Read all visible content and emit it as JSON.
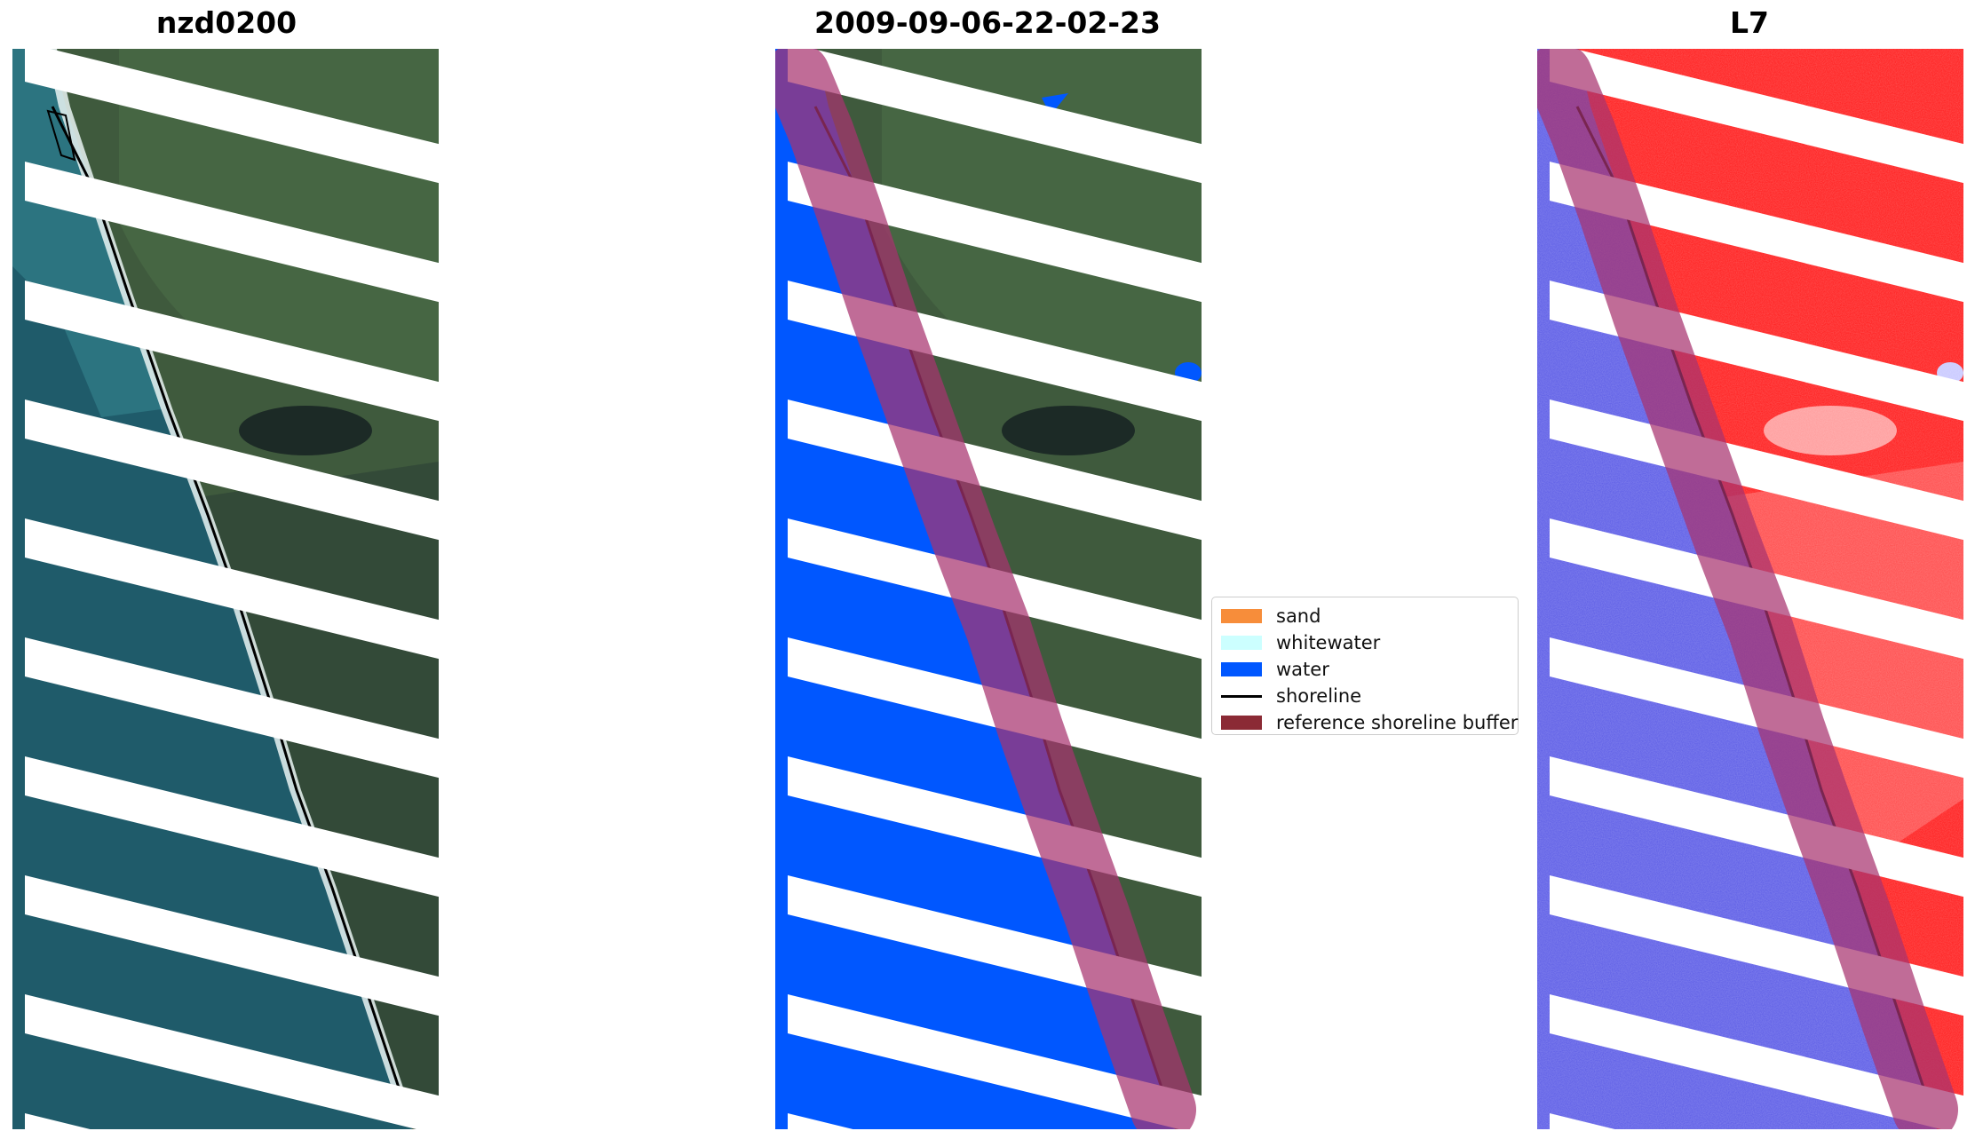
{
  "panels": [
    {
      "title": "nzd0200",
      "kind": "rgb"
    },
    {
      "title": "2009-09-06-22-02-23",
      "kind": "classified"
    },
    {
      "title": "L7",
      "kind": "mndwi"
    }
  ],
  "legend": {
    "items": [
      {
        "label": "sand",
        "color": "#f78d3a",
        "type": "patch"
      },
      {
        "label": "whitewater",
        "color": "#ccffff",
        "type": "patch"
      },
      {
        "label": "water",
        "color": "#0057ff",
        "type": "patch"
      },
      {
        "label": "shoreline",
        "color": "#000000",
        "type": "line"
      },
      {
        "label": "reference shoreline buffer",
        "color": "#8b2a35",
        "type": "patch"
      }
    ]
  },
  "colors": {
    "land": "#3f5a3d",
    "land_dark": "#2a3d2e",
    "sea": "#1f5b6a",
    "sea_light": "#2f7b86",
    "surf": "#e9f3f2",
    "water_class": "#0057ff",
    "land_index": "#ff1a1a",
    "water_index": "#5a5ae6",
    "buffer": "#a8336f"
  }
}
